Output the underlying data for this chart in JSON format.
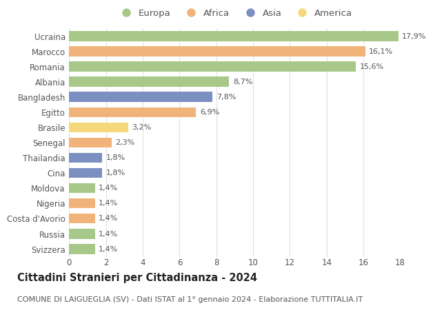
{
  "countries": [
    "Svizzera",
    "Russia",
    "Costa d'Avorio",
    "Nigeria",
    "Moldova",
    "Cina",
    "Thailandia",
    "Senegal",
    "Brasile",
    "Egitto",
    "Bangladesh",
    "Albania",
    "Romania",
    "Marocco",
    "Ucraina"
  ],
  "values": [
    1.4,
    1.4,
    1.4,
    1.4,
    1.4,
    1.8,
    1.8,
    2.3,
    3.2,
    6.9,
    7.8,
    8.7,
    15.6,
    16.1,
    17.9
  ],
  "labels": [
    "1,4%",
    "1,4%",
    "1,4%",
    "1,4%",
    "1,4%",
    "1,8%",
    "1,8%",
    "2,3%",
    "3,2%",
    "6,9%",
    "7,8%",
    "8,7%",
    "15,6%",
    "16,1%",
    "17,9%"
  ],
  "continents": [
    "Europa",
    "Europa",
    "Africa",
    "Africa",
    "Europa",
    "Asia",
    "Asia",
    "Africa",
    "America",
    "Africa",
    "Asia",
    "Europa",
    "Europa",
    "Africa",
    "Europa"
  ],
  "colors": {
    "Europa": "#a8c88a",
    "Africa": "#f0b47a",
    "Asia": "#7b8fc0",
    "America": "#f5d87a"
  },
  "legend_items": [
    "Europa",
    "Africa",
    "Asia",
    "America"
  ],
  "title": "Cittadini Stranieri per Cittadinanza - 2024",
  "subtitle": "COMUNE DI LAIGUEGLIA (SV) - Dati ISTAT al 1° gennaio 2024 - Elaborazione TUTTITALIA.IT",
  "xlim": [
    0,
    18
  ],
  "xticks": [
    0,
    2,
    4,
    6,
    8,
    10,
    12,
    14,
    16,
    18
  ],
  "background_color": "#ffffff",
  "grid_color": "#e0e0e0",
  "bar_height": 0.65,
  "label_fontsize": 8.0,
  "title_fontsize": 10.5,
  "subtitle_fontsize": 8.0,
  "tick_fontsize": 8.5,
  "legend_fontsize": 9.5
}
